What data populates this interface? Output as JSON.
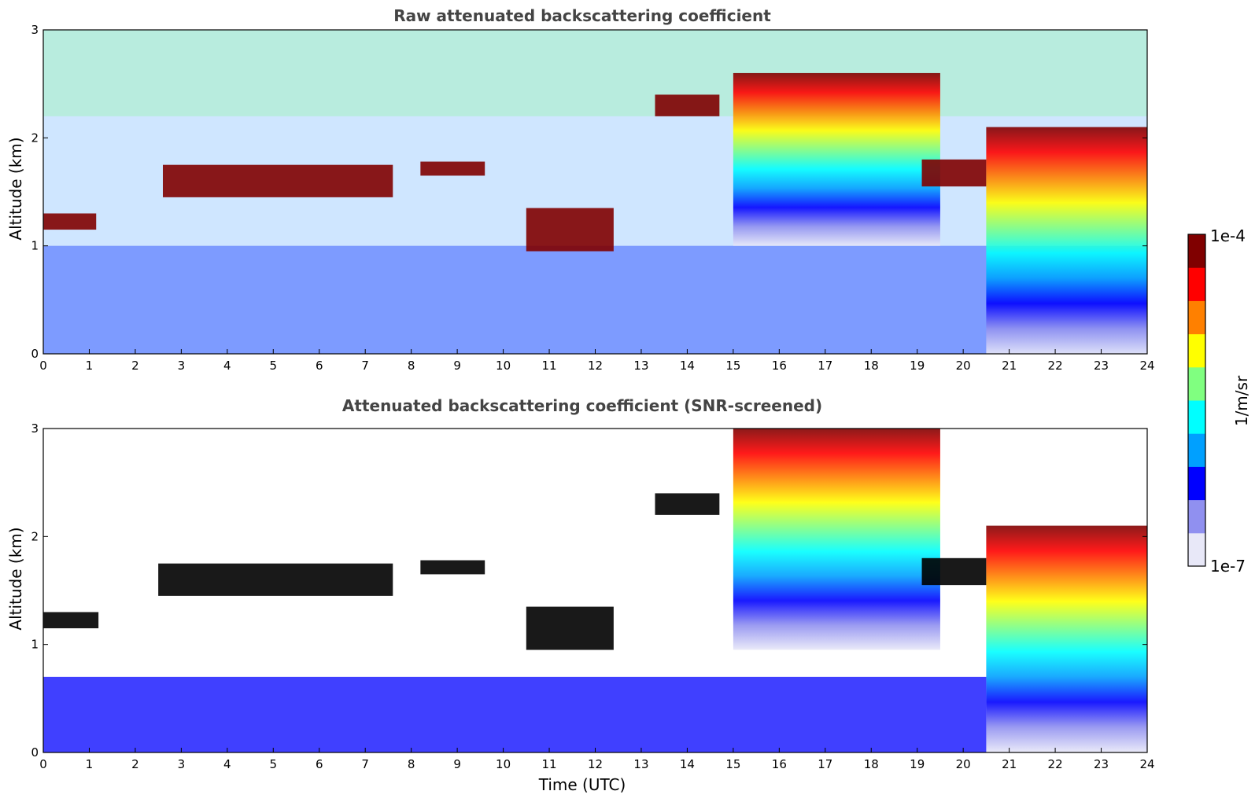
{
  "chart_data": [
    {
      "type": "heatmap",
      "title": "Raw attenuated backscattering coefficient",
      "xlabel": "",
      "ylabel": "Altitude (km)",
      "xlim": [
        0,
        24
      ],
      "ylim": [
        0,
        3
      ],
      "x_ticks": [
        "0",
        "1",
        "2",
        "3",
        "4",
        "5",
        "6",
        "7",
        "8",
        "9",
        "10",
        "11",
        "12",
        "13",
        "14",
        "15",
        "16",
        "17",
        "18",
        "19",
        "20",
        "21",
        "22",
        "23",
        "24"
      ],
      "y_ticks": [
        "0",
        "1",
        "2",
        "3"
      ],
      "layers": [
        {
          "label": "cloud layer",
          "x": [
            0.0,
            1.15
          ],
          "y": [
            1.15,
            1.3
          ]
        },
        {
          "label": "cloud layer",
          "x": [
            2.6,
            7.6
          ],
          "y": [
            1.45,
            1.75
          ]
        },
        {
          "label": "cloud layer",
          "x": [
            8.2,
            9.6
          ],
          "y": [
            1.65,
            1.78
          ]
        },
        {
          "label": "cloud layer",
          "x": [
            10.5,
            12.4
          ],
          "y": [
            0.95,
            1.35
          ]
        },
        {
          "label": "cloud layer",
          "x": [
            13.3,
            14.7
          ],
          "y": [
            2.2,
            2.4
          ]
        },
        {
          "label": "precipitation streaks",
          "x": [
            15.0,
            19.5
          ],
          "y": [
            1.0,
            2.6
          ]
        },
        {
          "label": "cloud layer",
          "x": [
            19.1,
            20.5
          ],
          "y": [
            1.55,
            1.8
          ]
        },
        {
          "label": "precipitation",
          "x": [
            20.5,
            24.0
          ],
          "y": [
            0.0,
            2.1
          ]
        }
      ]
    },
    {
      "type": "heatmap",
      "title": "Attenuated backscattering coefficient (SNR-screened)",
      "xlabel": "Time (UTC)",
      "ylabel": "Altitude (km)",
      "xlim": [
        0,
        24
      ],
      "ylim": [
        0,
        3
      ],
      "x_ticks": [
        "0",
        "1",
        "2",
        "3",
        "4",
        "5",
        "6",
        "7",
        "8",
        "9",
        "10",
        "11",
        "12",
        "13",
        "14",
        "15",
        "16",
        "17",
        "18",
        "19",
        "20",
        "21",
        "22",
        "23",
        "24"
      ],
      "y_ticks": [
        "0",
        "1",
        "2",
        "3"
      ],
      "layers": [
        {
          "label": "cloud layer",
          "x": [
            0.0,
            1.2
          ],
          "y": [
            1.15,
            1.3
          ]
        },
        {
          "label": "cloud layer",
          "x": [
            2.5,
            7.6
          ],
          "y": [
            1.45,
            1.75
          ]
        },
        {
          "label": "cloud layer",
          "x": [
            8.2,
            9.6
          ],
          "y": [
            1.65,
            1.78
          ]
        },
        {
          "label": "cloud layer",
          "x": [
            10.5,
            12.4
          ],
          "y": [
            0.95,
            1.35
          ]
        },
        {
          "label": "cloud layer",
          "x": [
            13.3,
            14.7
          ],
          "y": [
            2.2,
            2.4
          ]
        },
        {
          "label": "precipitation streaks",
          "x": [
            15.0,
            19.5
          ],
          "y": [
            0.95,
            3.0
          ]
        },
        {
          "label": "cloud layer",
          "x": [
            19.1,
            20.5
          ],
          "y": [
            1.55,
            1.8
          ]
        },
        {
          "label": "precipitation",
          "x": [
            20.5,
            24.0
          ],
          "y": [
            0.0,
            2.1
          ]
        },
        {
          "label": "boundary layer aerosol",
          "x": [
            0.0,
            20.5
          ],
          "y": [
            0.0,
            0.7
          ]
        }
      ]
    }
  ],
  "colorbar": {
    "label": "1/m/sr",
    "max_label": "1e-4",
    "min_label": "1e-7",
    "scale": "log",
    "colormap": "jet",
    "colors": [
      "#e8e8f8",
      "#9090f0",
      "#0000ff",
      "#00a0ff",
      "#00ffff",
      "#80ff80",
      "#ffff00",
      "#ff8000",
      "#ff0000",
      "#800000"
    ]
  }
}
